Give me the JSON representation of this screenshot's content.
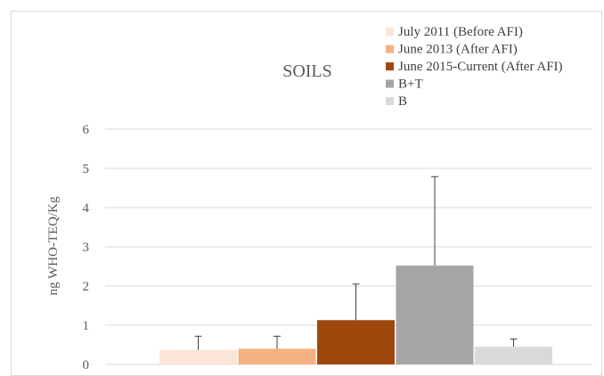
{
  "chart_data": {
    "type": "bar",
    "title": "SOILS",
    "ylabel": "ng WHO-TEQ/Kg",
    "xlabel": "",
    "ylim": [
      0,
      6
    ],
    "yticks": [
      0,
      1,
      2,
      3,
      4,
      5,
      6
    ],
    "grid": true,
    "legend_position": "top-right",
    "series": [
      {
        "name": "July 2011 (Before AFI)",
        "value": 0.37,
        "error": 0.35,
        "color": "#fbe5d6"
      },
      {
        "name": "June 2013 (After AFI)",
        "value": 0.4,
        "error": 0.32,
        "color": "#f4b183"
      },
      {
        "name": "June 2015-Current (After AFI)",
        "value": 1.13,
        "error": 0.92,
        "color": "#9e480e"
      },
      {
        "name": "B+T",
        "value": 2.52,
        "error": 2.27,
        "color": "#a5a5a5"
      },
      {
        "name": "B",
        "value": 0.45,
        "error": 0.2,
        "color": "#d9d9d9"
      }
    ]
  }
}
